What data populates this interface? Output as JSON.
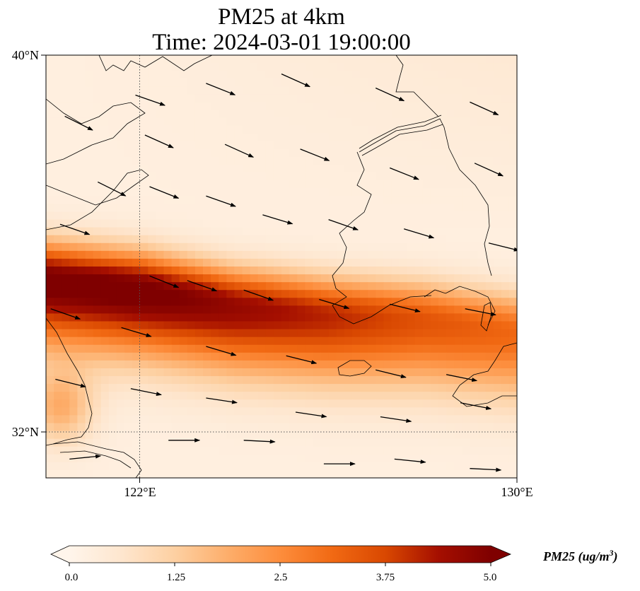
{
  "title": {
    "line1": "PM25 at 4km",
    "line2": "Time: 2024-03-01 19:00:00"
  },
  "map": {
    "lat_range": [
      31,
      40
    ],
    "lon_range": [
      120,
      130
    ],
    "lat_ticks": [
      {
        "value": 40,
        "label": "40°N"
      },
      {
        "value": 32,
        "label": "32°N"
      }
    ],
    "lon_ticks": [
      {
        "value": 122,
        "label": "122°E"
      },
      {
        "value": 130,
        "label": "130°E"
      }
    ],
    "gridlines": {
      "lat": 32,
      "lon": 122
    }
  },
  "chart_data": {
    "type": "heatmap",
    "variable": "PM25",
    "units": "ug/m3",
    "plume_axis": [
      [
        120.0,
        35.2
      ],
      [
        122.0,
        35.0
      ],
      [
        124.0,
        34.65
      ],
      [
        126.0,
        34.45
      ],
      [
        128.0,
        34.35
      ],
      [
        130.0,
        34.1
      ]
    ],
    "plume_peak": [
      5.0,
      5.0,
      4.4,
      3.9,
      3.3,
      2.9
    ],
    "background_level": [
      0.25,
      0.35,
      0.5
    ],
    "wind_vectors": [
      {
        "lon": 121.9,
        "lat": 39.15,
        "u": 1.0,
        "v": -0.35
      },
      {
        "lon": 123.4,
        "lat": 39.4,
        "u": 1.0,
        "v": -0.4
      },
      {
        "lon": 125.0,
        "lat": 39.6,
        "u": 1.0,
        "v": -0.45
      },
      {
        "lon": 127.0,
        "lat": 39.3,
        "u": 1.0,
        "v": -0.45
      },
      {
        "lon": 129.0,
        "lat": 39.0,
        "u": 1.0,
        "v": -0.45
      },
      {
        "lon": 120.4,
        "lat": 38.7,
        "u": 1.0,
        "v": -0.5
      },
      {
        "lon": 122.1,
        "lat": 38.3,
        "u": 1.0,
        "v": -0.45
      },
      {
        "lon": 123.8,
        "lat": 38.1,
        "u": 1.0,
        "v": -0.45
      },
      {
        "lon": 125.4,
        "lat": 38.0,
        "u": 1.0,
        "v": -0.4
      },
      {
        "lon": 127.3,
        "lat": 37.6,
        "u": 1.0,
        "v": -0.4
      },
      {
        "lon": 129.1,
        "lat": 37.7,
        "u": 1.0,
        "v": -0.45
      },
      {
        "lon": 121.1,
        "lat": 37.3,
        "u": 1.0,
        "v": -0.5
      },
      {
        "lon": 122.2,
        "lat": 37.2,
        "u": 1.0,
        "v": -0.4
      },
      {
        "lon": 123.4,
        "lat": 37.0,
        "u": 1.0,
        "v": -0.35
      },
      {
        "lon": 124.6,
        "lat": 36.6,
        "u": 1.0,
        "v": -0.3
      },
      {
        "lon": 126.0,
        "lat": 36.5,
        "u": 1.0,
        "v": -0.35
      },
      {
        "lon": 127.6,
        "lat": 36.3,
        "u": 1.0,
        "v": -0.3
      },
      {
        "lon": 129.4,
        "lat": 36.0,
        "u": 1.0,
        "v": -0.25
      },
      {
        "lon": 120.3,
        "lat": 36.4,
        "u": 1.0,
        "v": -0.35
      },
      {
        "lon": 122.2,
        "lat": 35.3,
        "u": 1.0,
        "v": -0.4
      },
      {
        "lon": 123.0,
        "lat": 35.2,
        "u": 1.0,
        "v": -0.35
      },
      {
        "lon": 124.2,
        "lat": 35.0,
        "u": 1.0,
        "v": -0.35
      },
      {
        "lon": 125.8,
        "lat": 34.8,
        "u": 1.0,
        "v": -0.3
      },
      {
        "lon": 127.3,
        "lat": 34.7,
        "u": 1.0,
        "v": -0.25
      },
      {
        "lon": 128.9,
        "lat": 34.6,
        "u": 1.0,
        "v": -0.2
      },
      {
        "lon": 120.1,
        "lat": 34.6,
        "u": 1.0,
        "v": -0.35
      },
      {
        "lon": 121.6,
        "lat": 34.2,
        "u": 1.0,
        "v": -0.3
      },
      {
        "lon": 123.4,
        "lat": 33.8,
        "u": 1.0,
        "v": -0.3
      },
      {
        "lon": 125.1,
        "lat": 33.6,
        "u": 1.0,
        "v": -0.25
      },
      {
        "lon": 127.0,
        "lat": 33.3,
        "u": 1.0,
        "v": -0.25
      },
      {
        "lon": 128.5,
        "lat": 33.2,
        "u": 1.0,
        "v": -0.2
      },
      {
        "lon": 120.2,
        "lat": 33.1,
        "u": 1.0,
        "v": -0.25
      },
      {
        "lon": 121.8,
        "lat": 32.9,
        "u": 1.0,
        "v": -0.2
      },
      {
        "lon": 123.4,
        "lat": 32.7,
        "u": 1.0,
        "v": -0.15
      },
      {
        "lon": 125.3,
        "lat": 32.4,
        "u": 1.0,
        "v": -0.15
      },
      {
        "lon": 127.1,
        "lat": 32.3,
        "u": 1.0,
        "v": -0.15
      },
      {
        "lon": 128.8,
        "lat": 32.6,
        "u": 1.0,
        "v": -0.2
      },
      {
        "lon": 120.5,
        "lat": 31.4,
        "u": 1.0,
        "v": 0.1
      },
      {
        "lon": 122.6,
        "lat": 31.8,
        "u": 1.0,
        "v": 0.0
      },
      {
        "lon": 124.2,
        "lat": 31.8,
        "u": 1.0,
        "v": -0.05
      },
      {
        "lon": 125.9,
        "lat": 31.3,
        "u": 1.0,
        "v": 0.0
      },
      {
        "lon": 127.4,
        "lat": 31.4,
        "u": 1.0,
        "v": -0.1
      },
      {
        "lon": 129.0,
        "lat": 31.2,
        "u": 1.0,
        "v": -0.05
      }
    ]
  },
  "colorbar": {
    "min": 0.0,
    "max": 5.0,
    "ticks": [
      "0.0",
      "1.25",
      "2.5",
      "3.75",
      "5.0"
    ],
    "label": "PM25 (ug/m",
    "label_sup": "3",
    "label_close": ")",
    "colors": [
      "#fff5eb",
      "#fee6ce",
      "#fdd0a2",
      "#fdae6b",
      "#fd8d3c",
      "#f16913",
      "#d94801",
      "#a50f00",
      "#7f0000"
    ]
  }
}
